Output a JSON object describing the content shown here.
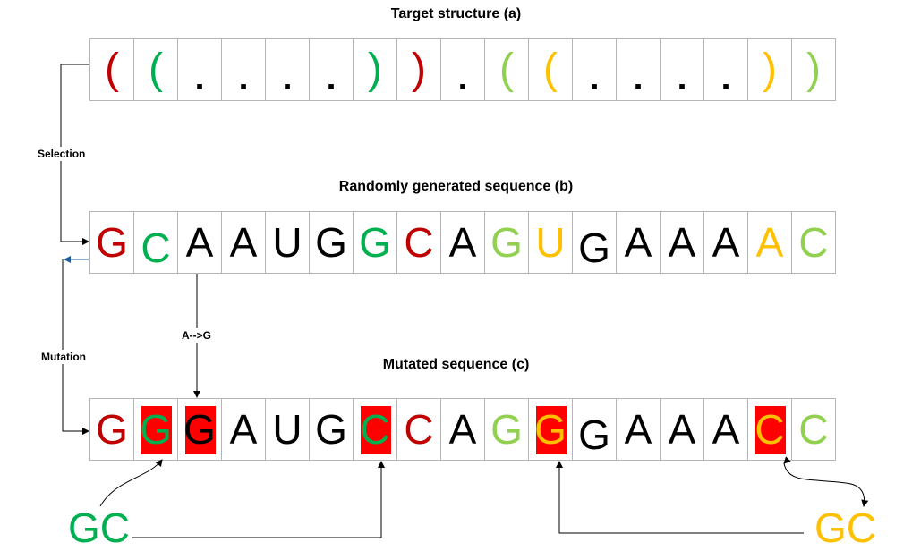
{
  "colors": {
    "red": "#c00000",
    "green": "#00b050",
    "lightgreen": "#92d050",
    "yellow": "#ffc000",
    "black": "#000000",
    "highlight": "#ff0000",
    "blue_arrow": "#1f5c99"
  },
  "target": {
    "title": "Target structure (a)",
    "cells": [
      {
        "ch": "(",
        "color": "#c00000"
      },
      {
        "ch": "(",
        "color": "#00b050"
      },
      {
        "ch": ".",
        "color": "#000000"
      },
      {
        "ch": ".",
        "color": "#000000"
      },
      {
        "ch": ".",
        "color": "#000000"
      },
      {
        "ch": ".",
        "color": "#000000"
      },
      {
        "ch": ")",
        "color": "#00b050"
      },
      {
        "ch": ")",
        "color": "#c00000"
      },
      {
        "ch": ".",
        "color": "#000000"
      },
      {
        "ch": "(",
        "color": "#92d050"
      },
      {
        "ch": "(",
        "color": "#ffc000"
      },
      {
        "ch": ".",
        "color": "#000000"
      },
      {
        "ch": ".",
        "color": "#000000"
      },
      {
        "ch": ".",
        "color": "#000000"
      },
      {
        "ch": ".",
        "color": "#000000"
      },
      {
        "ch": ")",
        "color": "#ffc000"
      },
      {
        "ch": ")",
        "color": "#92d050"
      }
    ]
  },
  "random": {
    "title": "Randomly generated sequence (b)",
    "cells": [
      {
        "ch": "G",
        "color": "#c00000"
      },
      {
        "ch": "C",
        "color": "#00b050",
        "low": true
      },
      {
        "ch": "A",
        "color": "#000000"
      },
      {
        "ch": "A",
        "color": "#000000"
      },
      {
        "ch": "U",
        "color": "#000000"
      },
      {
        "ch": "G",
        "color": "#000000"
      },
      {
        "ch": "G",
        "color": "#00b050"
      },
      {
        "ch": "C",
        "color": "#c00000"
      },
      {
        "ch": "A",
        "color": "#000000"
      },
      {
        "ch": "G",
        "color": "#92d050"
      },
      {
        "ch": "U",
        "color": "#ffc000"
      },
      {
        "ch": "G",
        "color": "#000000",
        "low": true
      },
      {
        "ch": "A",
        "color": "#000000"
      },
      {
        "ch": "A",
        "color": "#000000"
      },
      {
        "ch": "A",
        "color": "#000000"
      },
      {
        "ch": "A",
        "color": "#ffc000"
      },
      {
        "ch": "C",
        "color": "#92d050"
      }
    ]
  },
  "mutated": {
    "title": "Mutated sequence (c)",
    "cells": [
      {
        "ch": "G",
        "color": "#c00000"
      },
      {
        "ch": "G",
        "color": "#00b050",
        "highlight": true
      },
      {
        "ch": "G",
        "color": "#000000",
        "highlight": true
      },
      {
        "ch": "A",
        "color": "#000000"
      },
      {
        "ch": "U",
        "color": "#000000"
      },
      {
        "ch": "G",
        "color": "#000000"
      },
      {
        "ch": "C",
        "color": "#00b050",
        "highlight": true
      },
      {
        "ch": "C",
        "color": "#c00000"
      },
      {
        "ch": "A",
        "color": "#000000"
      },
      {
        "ch": "G",
        "color": "#92d050"
      },
      {
        "ch": "G",
        "color": "#ffc000",
        "highlight": true
      },
      {
        "ch": "G",
        "color": "#000000",
        "low": true
      },
      {
        "ch": "A",
        "color": "#000000"
      },
      {
        "ch": "A",
        "color": "#000000"
      },
      {
        "ch": "A",
        "color": "#000000"
      },
      {
        "ch": "C",
        "color": "#ffc000",
        "highlight": true
      },
      {
        "ch": "C",
        "color": "#92d050"
      }
    ]
  },
  "labels": {
    "selection": "Selection",
    "mutation": "Mutation",
    "a_to_g": "A-->G"
  },
  "gc_left": {
    "text": "GC",
    "color": "#00b050"
  },
  "gc_right": {
    "text": "GC",
    "color": "#ffc000"
  }
}
